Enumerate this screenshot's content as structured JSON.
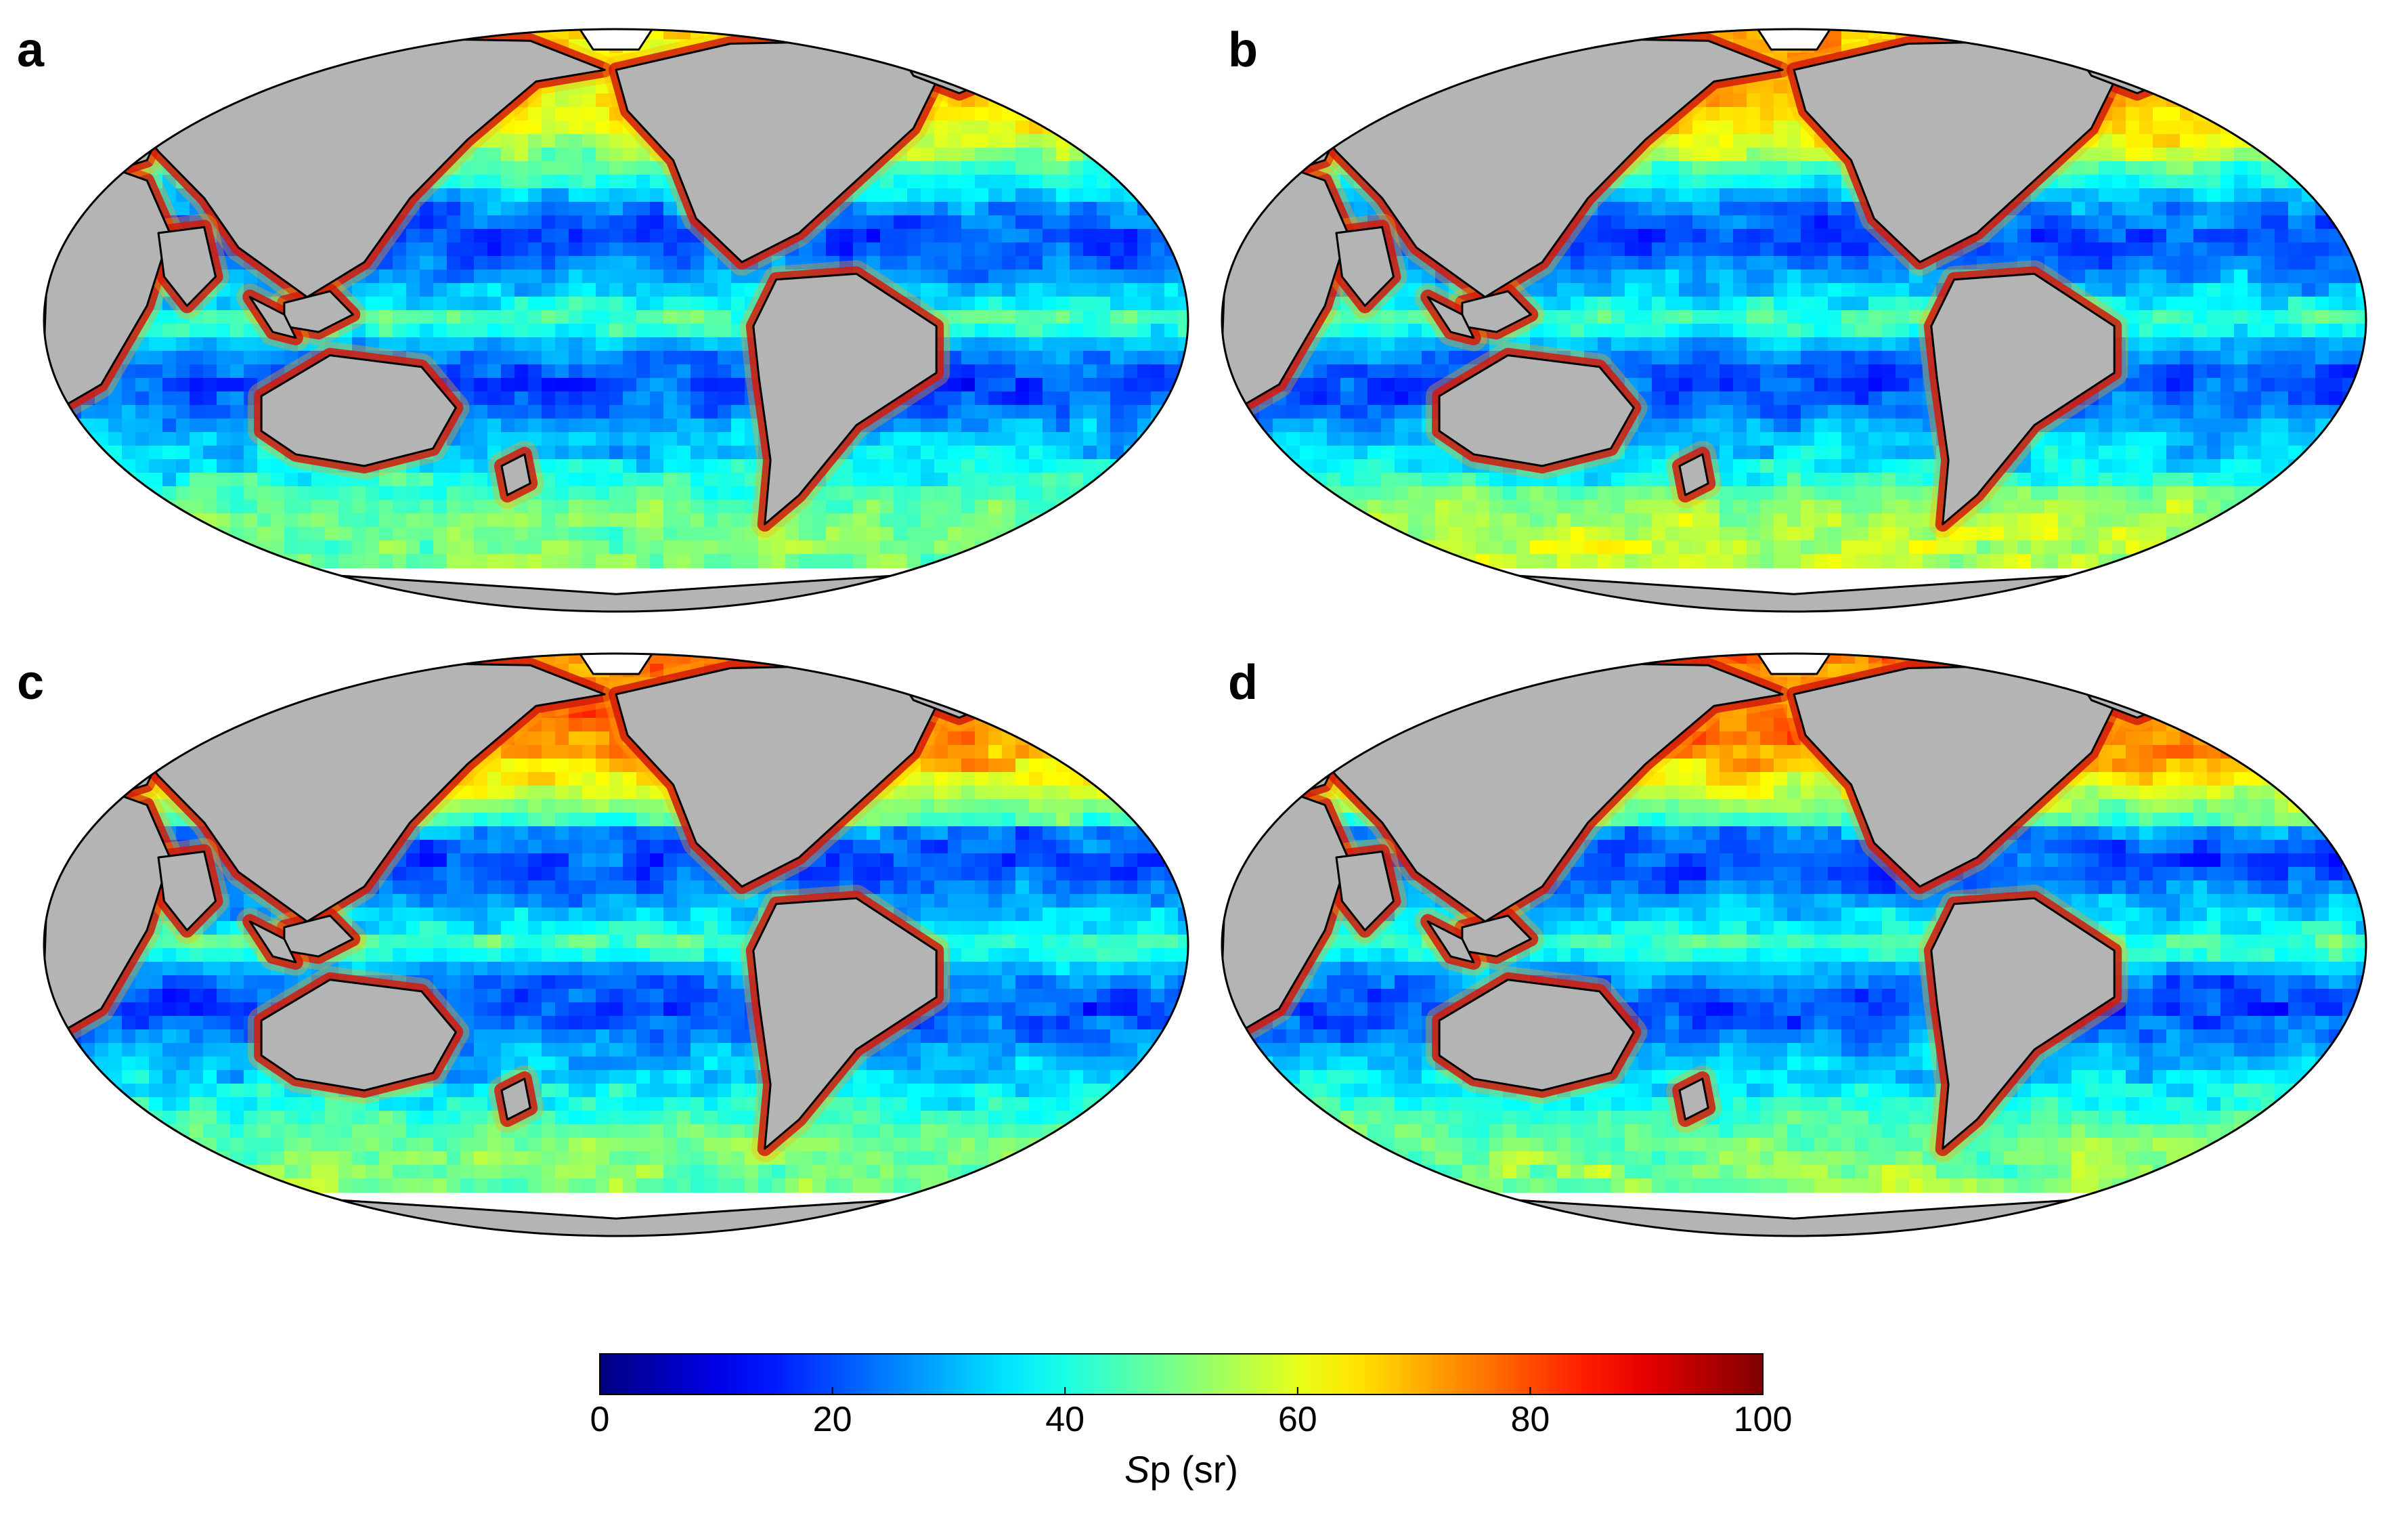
{
  "panels": [
    {
      "letter": "a",
      "pattern": "a"
    },
    {
      "letter": "b",
      "pattern": "b"
    },
    {
      "letter": "c",
      "pattern": "c"
    },
    {
      "letter": "d",
      "pattern": "d"
    }
  ],
  "colorbar": {
    "title_var": "S",
    "title_rest": "p (sr)",
    "min": 0,
    "max": 100,
    "ticks": [
      "0",
      "20",
      "40",
      "60",
      "80",
      "100"
    ],
    "colormap": "jet",
    "colors": [
      "#00008f",
      "#0000ff",
      "#00ffff",
      "#ffff00",
      "#ff0000",
      "#800000"
    ]
  },
  "style": {
    "land_color": "#b4b4b4",
    "no_data_color": "#ffffff",
    "coast_color": "#000000"
  }
}
